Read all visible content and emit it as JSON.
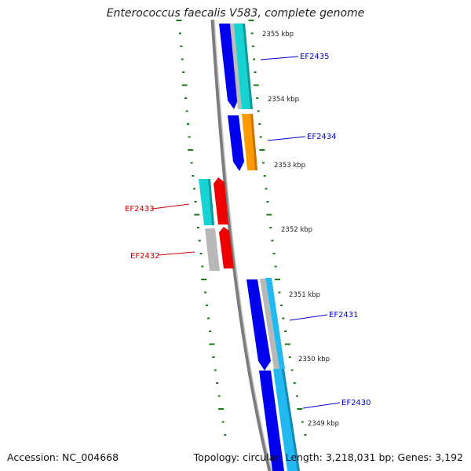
{
  "title": "Enterococcus faecalis V583, complete genome",
  "accession": "Accession: NC_004668",
  "summary": "Topology: circular; Length: 3,218,031 bp; Genes: 3,192",
  "colors": {
    "backbone": "#8a8a8a",
    "tick": "#1a7a1a",
    "forward_label": "#0000cc",
    "reverse_label": "#cc0000",
    "blue": "#0000ee",
    "cyan": "#17d3d3",
    "sky": "#22b8f0",
    "orange": "#ff9a00",
    "red": "#ee0000",
    "gray": "#b8b8b8"
  },
  "scale": [
    {
      "label": "2355 kbp"
    },
    {
      "label": "2354 kbp"
    },
    {
      "label": "2353 kbp"
    },
    {
      "label": "2352 kbp"
    },
    {
      "label": "2351 kbp"
    },
    {
      "label": "2350 kbp"
    },
    {
      "label": "2349 kbp"
    }
  ],
  "genes": [
    {
      "label": "EF2435",
      "strand": "forward"
    },
    {
      "label": "EF2434",
      "strand": "forward"
    },
    {
      "label": "EF2433",
      "strand": "reverse"
    },
    {
      "label": "EF2432",
      "strand": "reverse"
    },
    {
      "label": "EF2431",
      "strand": "forward"
    },
    {
      "label": "EF2430",
      "strand": "forward"
    }
  ]
}
